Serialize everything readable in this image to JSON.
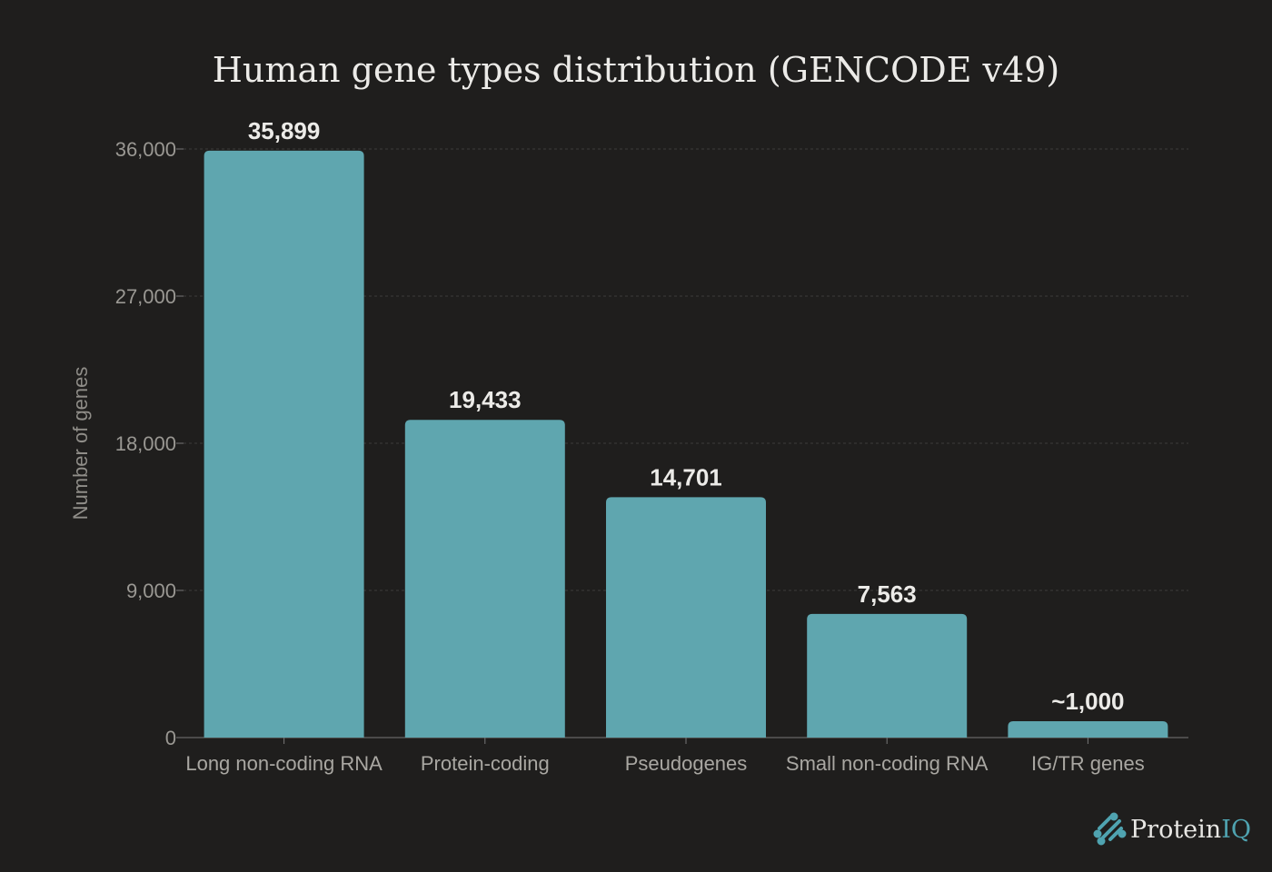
{
  "chart_data": {
    "type": "bar",
    "title": "Human gene types distribution (GENCODE v49)",
    "xlabel": "",
    "ylabel": "Number of genes",
    "ylim": [
      0,
      36000
    ],
    "yticks": [
      0,
      9000,
      18000,
      27000,
      36000
    ],
    "ytick_labels": [
      "0",
      "9,000",
      "18,000",
      "27,000",
      "36,000"
    ],
    "grid": true,
    "categories": [
      "Long non-coding RNA",
      "Protein-coding",
      "Pseudogenes",
      "Small non-coding RNA",
      "IG/TR genes"
    ],
    "values": [
      35899,
      19433,
      14701,
      7563,
      1000
    ],
    "data_labels": [
      "35,899",
      "19,433",
      "14,701",
      "7,563",
      "~1,000"
    ],
    "bar_color": "#5fa6af"
  },
  "branding": {
    "logo_text": "ProteinIQ",
    "accent": "#4fa3b0"
  }
}
